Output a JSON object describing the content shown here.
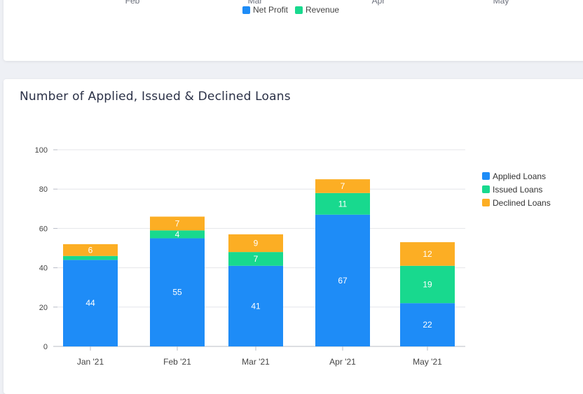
{
  "top_chart": {
    "x_labels": [
      "Feb",
      "Mar",
      "Apr",
      "May"
    ],
    "legend": [
      {
        "name": "Net Profit",
        "color": "#1e8cf7"
      },
      {
        "name": "Revenue",
        "color": "#18d98e"
      }
    ]
  },
  "chart_data": {
    "type": "bar",
    "stacked": true,
    "title": "Number of Applied, Issued & Declined Loans",
    "categories": [
      "Jan '21",
      "Feb '21",
      "Mar '21",
      "Apr '21",
      "May '21"
    ],
    "series": [
      {
        "name": "Applied Loans",
        "color": "#1e8cf7",
        "values": [
          44,
          55,
          41,
          67,
          22
        ]
      },
      {
        "name": "Issued Loans",
        "color": "#18d98e",
        "values": [
          2,
          4,
          7,
          11,
          19
        ]
      },
      {
        "name": "Declined Loans",
        "color": "#fcae24",
        "values": [
          6,
          7,
          9,
          7,
          12
        ]
      }
    ],
    "data_labels": [
      [
        "44",
        "55",
        "41",
        "67",
        "22"
      ],
      [
        "",
        "4",
        "7",
        "11",
        "19"
      ],
      [
        "6",
        "7",
        "9",
        "7",
        "12"
      ]
    ],
    "ylim": [
      0,
      100
    ],
    "yticks": [
      0,
      20,
      40,
      60,
      80,
      100
    ],
    "grid": true,
    "legend_position": "right"
  }
}
